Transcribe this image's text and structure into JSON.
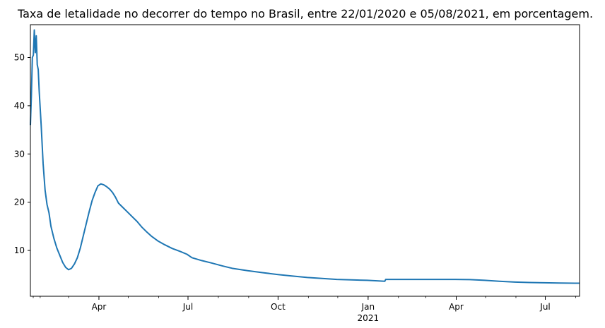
{
  "chart_data": {
    "type": "line",
    "title": "Taxa de letalidade no decorrer do tempo no Brasil, entre 22/01/2020 e 05/08/2021, em porcentagem.",
    "xlabel": "",
    "ylabel": "",
    "x_range": [
      "2020-01-22",
      "2021-08-05"
    ],
    "ylim": [
      0.5,
      56.8
    ],
    "grid": false,
    "legend": "none",
    "line_color": "#1f77b4",
    "x_ticks": [
      {
        "date": "2020-04-01",
        "label": "Apr"
      },
      {
        "date": "2020-07-01",
        "label": "Jul"
      },
      {
        "date": "2020-10-01",
        "label": "Oct"
      },
      {
        "date": "2021-01-01",
        "label": "Jan",
        "sublabel": "2021"
      },
      {
        "date": "2021-04-01",
        "label": "Apr"
      },
      {
        "date": "2021-07-01",
        "label": "Jul"
      }
    ],
    "y_ticks": [
      10,
      20,
      30,
      40,
      50
    ],
    "series": [
      {
        "points": [
          [
            "2020-01-22",
            36.0
          ],
          [
            "2020-01-23",
            42.0
          ],
          [
            "2020-01-24",
            50.0
          ],
          [
            "2020-01-25",
            50.5
          ],
          [
            "2020-01-26",
            55.7
          ],
          [
            "2020-01-27",
            51.0
          ],
          [
            "2020-01-28",
            54.5
          ],
          [
            "2020-01-29",
            48.5
          ],
          [
            "2020-01-30",
            47.5
          ],
          [
            "2020-01-31",
            43.0
          ],
          [
            "2020-02-02",
            36.0
          ],
          [
            "2020-02-04",
            28.0
          ],
          [
            "2020-02-06",
            22.5
          ],
          [
            "2020-02-08",
            19.5
          ],
          [
            "2020-02-10",
            17.8
          ],
          [
            "2020-02-12",
            15.0
          ],
          [
            "2020-02-15",
            12.5
          ],
          [
            "2020-02-18",
            10.5
          ],
          [
            "2020-02-21",
            9.0
          ],
          [
            "2020-02-24",
            7.5
          ],
          [
            "2020-02-27",
            6.5
          ],
          [
            "2020-03-01",
            6.0
          ],
          [
            "2020-03-04",
            6.3
          ],
          [
            "2020-03-07",
            7.2
          ],
          [
            "2020-03-10",
            8.5
          ],
          [
            "2020-03-13",
            10.5
          ],
          [
            "2020-03-16",
            13.0
          ],
          [
            "2020-03-19",
            15.5
          ],
          [
            "2020-03-22",
            18.0
          ],
          [
            "2020-03-25",
            20.3
          ],
          [
            "2020-03-28",
            22.0
          ],
          [
            "2020-03-31",
            23.4
          ],
          [
            "2020-04-03",
            23.8
          ],
          [
            "2020-04-06",
            23.6
          ],
          [
            "2020-04-09",
            23.2
          ],
          [
            "2020-04-12",
            22.7
          ],
          [
            "2020-04-15",
            22.0
          ],
          [
            "2020-04-18",
            21.0
          ],
          [
            "2020-04-21",
            19.8
          ],
          [
            "2020-04-25",
            19.0
          ],
          [
            "2020-04-30",
            18.0
          ],
          [
            "2020-05-05",
            17.0
          ],
          [
            "2020-05-10",
            16.0
          ],
          [
            "2020-05-15",
            14.8
          ],
          [
            "2020-05-20",
            13.8
          ],
          [
            "2020-05-25",
            12.9
          ],
          [
            "2020-05-31",
            12.0
          ],
          [
            "2020-06-07",
            11.2
          ],
          [
            "2020-06-15",
            10.4
          ],
          [
            "2020-06-23",
            9.8
          ],
          [
            "2020-06-30",
            9.2
          ],
          [
            "2020-07-05",
            8.5
          ],
          [
            "2020-07-15",
            7.9
          ],
          [
            "2020-07-25",
            7.4
          ],
          [
            "2020-08-05",
            6.8
          ],
          [
            "2020-08-15",
            6.3
          ],
          [
            "2020-08-31",
            5.8
          ],
          [
            "2020-09-15",
            5.4
          ],
          [
            "2020-10-01",
            5.0
          ],
          [
            "2020-10-15",
            4.7
          ],
          [
            "2020-10-31",
            4.4
          ],
          [
            "2020-11-15",
            4.2
          ],
          [
            "2020-11-30",
            4.0
          ],
          [
            "2020-12-15",
            3.9
          ],
          [
            "2020-12-31",
            3.8
          ],
          [
            "2021-01-10",
            3.7
          ],
          [
            "2021-01-18",
            3.6
          ],
          [
            "2021-01-19",
            4.0
          ],
          [
            "2021-01-31",
            4.0
          ],
          [
            "2021-02-28",
            4.0
          ],
          [
            "2021-03-31",
            4.0
          ],
          [
            "2021-04-15",
            3.95
          ],
          [
            "2021-04-30",
            3.8
          ],
          [
            "2021-05-15",
            3.6
          ],
          [
            "2021-05-31",
            3.45
          ],
          [
            "2021-06-15",
            3.35
          ],
          [
            "2021-06-30",
            3.3
          ],
          [
            "2021-07-15",
            3.25
          ],
          [
            "2021-07-31",
            3.2
          ],
          [
            "2021-08-05",
            3.2
          ]
        ]
      }
    ]
  }
}
